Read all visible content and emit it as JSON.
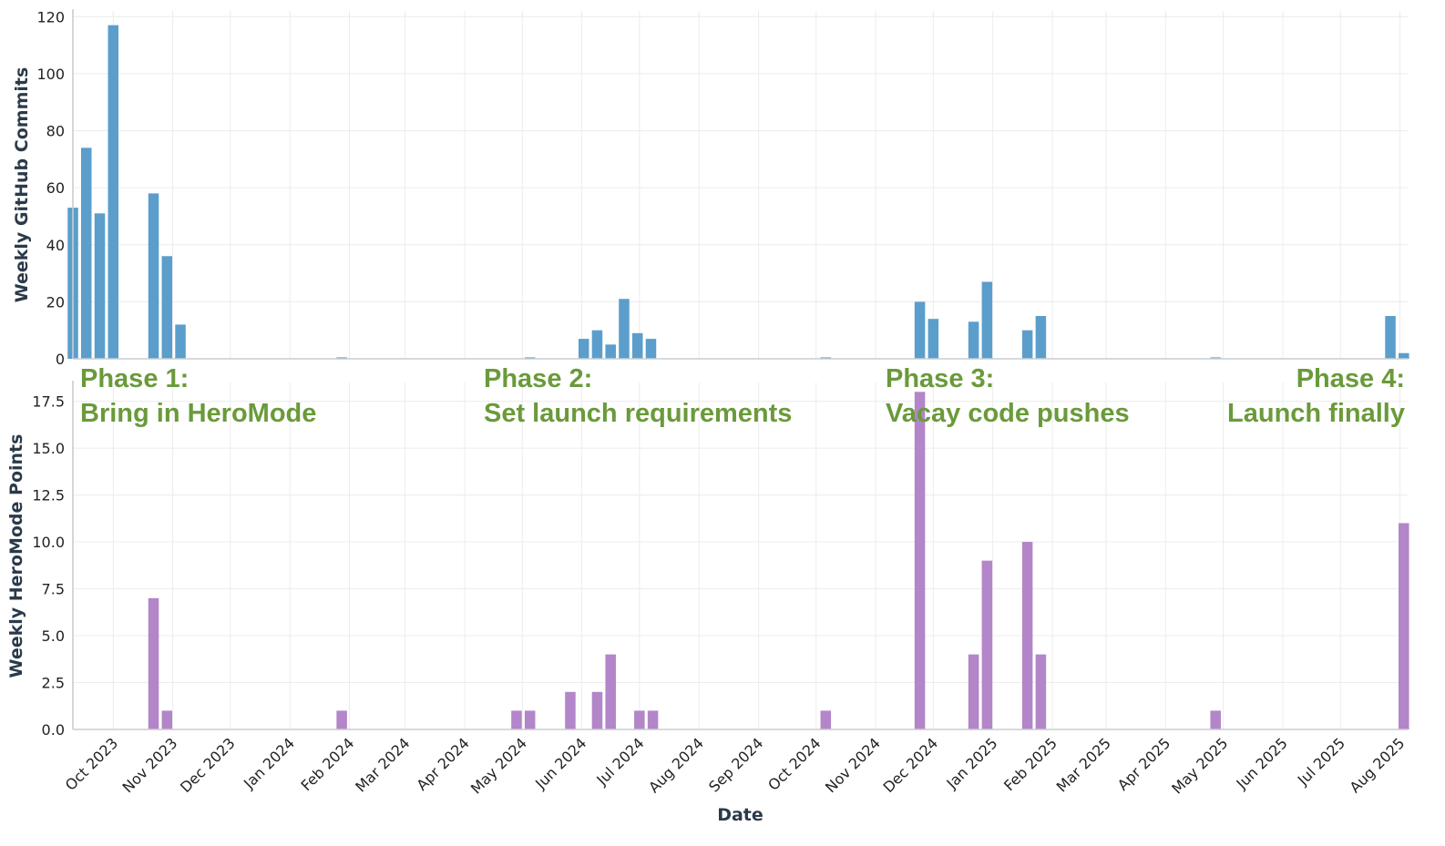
{
  "chart_data": [
    {
      "type": "bar",
      "ylabel": "Weekly GitHub Commits",
      "ylim": [
        0,
        122
      ],
      "yticks": [
        0,
        20,
        40,
        60,
        80,
        100,
        120
      ],
      "ytick_labels": [
        "0",
        "20",
        "40",
        "60",
        "80",
        "100",
        "120"
      ],
      "grid": true,
      "series": [
        {
          "color": "#5b9ecb",
          "x": [
            "2023-09-10",
            "2023-09-17",
            "2023-09-24",
            "2023-10-01",
            "2023-10-22",
            "2023-10-29",
            "2023-11-05",
            "2024-01-28",
            "2024-05-05",
            "2024-06-02",
            "2024-06-09",
            "2024-06-16",
            "2024-06-23",
            "2024-06-30",
            "2024-07-07",
            "2024-10-06",
            "2024-11-24",
            "2024-12-01",
            "2024-12-22",
            "2024-12-29",
            "2025-01-19",
            "2025-01-26",
            "2025-04-27",
            "2025-07-27",
            "2025-08-03"
          ],
          "values": [
            53,
            74,
            51,
            117,
            58,
            36,
            12,
            0.5,
            0.5,
            7,
            10,
            5,
            21,
            9,
            7,
            0.5,
            20,
            14,
            13,
            27,
            10,
            15,
            0.5,
            15,
            2
          ]
        }
      ]
    },
    {
      "type": "bar",
      "xlabel": "Date",
      "ylabel": "Weekly HeroMode Points",
      "ylim": [
        0,
        18.5
      ],
      "yticks": [
        0,
        2.5,
        5,
        7.5,
        10,
        12.5,
        15,
        17.5
      ],
      "ytick_labels": [
        "0.0",
        "2.5",
        "5.0",
        "7.5",
        "10.0",
        "12.5",
        "15.0",
        "17.5"
      ],
      "grid": true,
      "series": [
        {
          "color": "#b385c9",
          "x": [
            "2023-10-22",
            "2023-10-29",
            "2024-01-28",
            "2024-04-28",
            "2024-05-05",
            "2024-05-26",
            "2024-06-09",
            "2024-06-16",
            "2024-07-01",
            "2024-07-08",
            "2024-10-06",
            "2024-11-24",
            "2024-12-22",
            "2024-12-29",
            "2025-01-19",
            "2025-01-26",
            "2025-04-27",
            "2025-08-03"
          ],
          "values": [
            7,
            1,
            1,
            1,
            1,
            2,
            2,
            4,
            1,
            1,
            1,
            18,
            4,
            9,
            10,
            4,
            1,
            11
          ]
        }
      ]
    }
  ],
  "x_axis": {
    "tick_dates": [
      "2023-10-01",
      "2023-11-01",
      "2023-12-01",
      "2024-01-01",
      "2024-02-01",
      "2024-03-01",
      "2024-04-01",
      "2024-05-01",
      "2024-06-01",
      "2024-07-01",
      "2024-08-01",
      "2024-09-01",
      "2024-10-01",
      "2024-11-01",
      "2024-12-01",
      "2025-01-01",
      "2025-02-01",
      "2025-03-01",
      "2025-04-01",
      "2025-05-01",
      "2025-06-01",
      "2025-07-01",
      "2025-08-01"
    ],
    "tick_labels": [
      "Oct 2023",
      "Nov 2023",
      "Dec 2023",
      "Jan 2024",
      "Feb 2024",
      "Mar 2024",
      "Apr 2024",
      "May 2024",
      "Jun 2024",
      "Jul 2024",
      "Aug 2024",
      "Sep 2024",
      "Oct 2024",
      "Nov 2024",
      "Dec 2024",
      "Jan 2025",
      "Feb 2025",
      "Mar 2025",
      "Apr 2025",
      "May 2025",
      "Jun 2025",
      "Jul 2025",
      "Aug 2025"
    ],
    "range": [
      "2023-09-10",
      "2025-08-05"
    ]
  },
  "annotations": [
    {
      "lines": [
        "Phase 1:",
        "Bring in HeroMode"
      ],
      "align": "start"
    },
    {
      "lines": [
        "Phase 2:",
        "Set launch requirements"
      ],
      "align": "start"
    },
    {
      "lines": [
        "Phase 3:",
        "Vacay code pushes"
      ],
      "align": "start"
    },
    {
      "lines": [
        "Phase 4:",
        "Launch finally"
      ],
      "align": "end"
    }
  ],
  "colors": {
    "annotation": "#6a9a3a",
    "label": "#2b3a4a",
    "grid": "#ececec",
    "axis": "#c8cdd4"
  }
}
